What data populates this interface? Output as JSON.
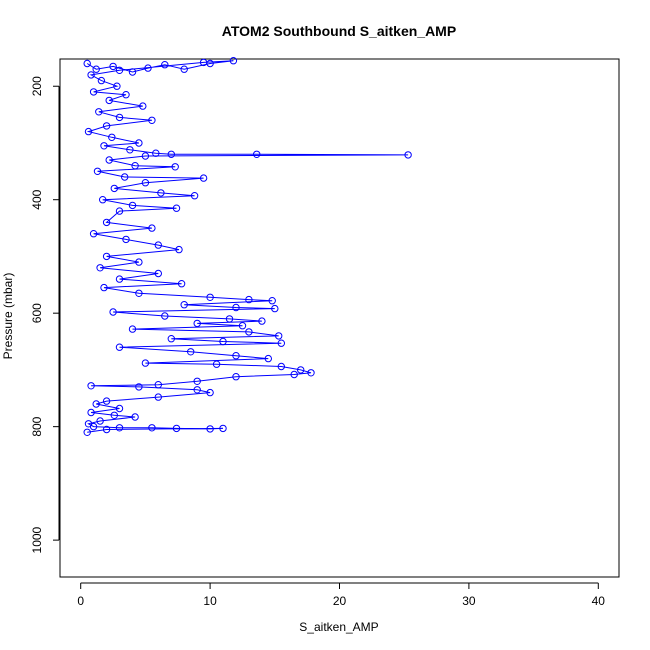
{
  "chart_data": {
    "type": "scatter",
    "title": "ATOM2 Southbound S_aitken_AMP",
    "xlabel": "S_aitken_AMP",
    "ylabel": "Pressure (mbar)",
    "xlim": [
      -1.6,
      41.6
    ],
    "ylim": [
      1065,
      152
    ],
    "y_inverted": true,
    "x_ticks": [
      0,
      10,
      20,
      30,
      40
    ],
    "y_ticks": [
      200,
      400,
      600,
      800,
      1000
    ],
    "grid": false,
    "legend": "none",
    "series": [
      {
        "color": "#0000ff",
        "marker": "open-circle",
        "connected": true,
        "points": [
          [
            0.5,
            160
          ],
          [
            1.2,
            170
          ],
          [
            2.5,
            165
          ],
          [
            4.0,
            175
          ],
          [
            5.2,
            168
          ],
          [
            6.5,
            162
          ],
          [
            8.0,
            170
          ],
          [
            10.0,
            160
          ],
          [
            11.8,
            155
          ],
          [
            9.5,
            158
          ],
          [
            3.0,
            172
          ],
          [
            0.8,
            180
          ],
          [
            1.6,
            190
          ],
          [
            2.8,
            200
          ],
          [
            1.0,
            210
          ],
          [
            3.5,
            215
          ],
          [
            2.2,
            225
          ],
          [
            4.8,
            235
          ],
          [
            1.4,
            245
          ],
          [
            3.0,
            255
          ],
          [
            5.5,
            260
          ],
          [
            2.0,
            270
          ],
          [
            0.6,
            280
          ],
          [
            2.4,
            290
          ],
          [
            4.5,
            300
          ],
          [
            1.8,
            305
          ],
          [
            3.8,
            312
          ],
          [
            5.8,
            318
          ],
          [
            7.0,
            320
          ],
          [
            13.6,
            320
          ],
          [
            25.3,
            321
          ],
          [
            5.0,
            323
          ],
          [
            2.2,
            330
          ],
          [
            4.2,
            340
          ],
          [
            7.3,
            342
          ],
          [
            1.3,
            350
          ],
          [
            3.4,
            360
          ],
          [
            9.5,
            362
          ],
          [
            5.0,
            370
          ],
          [
            2.6,
            380
          ],
          [
            6.2,
            388
          ],
          [
            8.8,
            393
          ],
          [
            1.7,
            400
          ],
          [
            4.0,
            410
          ],
          [
            7.4,
            415
          ],
          [
            3.0,
            420
          ],
          [
            2.0,
            440
          ],
          [
            5.5,
            450
          ],
          [
            1.0,
            460
          ],
          [
            3.5,
            470
          ],
          [
            6.0,
            480
          ],
          [
            7.6,
            488
          ],
          [
            2.0,
            500
          ],
          [
            4.5,
            510
          ],
          [
            1.5,
            520
          ],
          [
            6.0,
            530
          ],
          [
            3.0,
            540
          ],
          [
            7.8,
            548
          ],
          [
            1.8,
            555
          ],
          [
            4.5,
            565
          ],
          [
            10.0,
            572
          ],
          [
            13.0,
            576
          ],
          [
            14.8,
            578
          ],
          [
            8.0,
            585
          ],
          [
            12.0,
            590
          ],
          [
            15.0,
            592
          ],
          [
            2.5,
            598
          ],
          [
            6.5,
            605
          ],
          [
            11.5,
            610
          ],
          [
            14.0,
            614
          ],
          [
            9.0,
            618
          ],
          [
            12.5,
            622
          ],
          [
            4.0,
            628
          ],
          [
            13.0,
            633
          ],
          [
            15.3,
            640
          ],
          [
            7.0,
            645
          ],
          [
            11.0,
            650
          ],
          [
            15.5,
            653
          ],
          [
            3.0,
            660
          ],
          [
            8.5,
            668
          ],
          [
            12.0,
            675
          ],
          [
            14.5,
            680
          ],
          [
            5.0,
            688
          ],
          [
            10.5,
            690
          ],
          [
            15.5,
            694
          ],
          [
            17.0,
            700
          ],
          [
            17.8,
            705
          ],
          [
            16.5,
            708
          ],
          [
            12.0,
            712
          ],
          [
            9.0,
            720
          ],
          [
            6.0,
            726
          ],
          [
            0.8,
            728
          ],
          [
            4.5,
            730
          ],
          [
            9.0,
            735
          ],
          [
            10.0,
            740
          ],
          [
            6.0,
            748
          ],
          [
            2.0,
            755
          ],
          [
            1.2,
            760
          ],
          [
            3.0,
            768
          ],
          [
            0.8,
            775
          ],
          [
            2.6,
            780
          ],
          [
            4.2,
            783
          ],
          [
            1.5,
            790
          ],
          [
            0.6,
            795
          ],
          [
            1.0,
            800
          ],
          [
            3.0,
            802
          ],
          [
            5.5,
            802
          ],
          [
            7.4,
            803
          ],
          [
            10.0,
            804
          ],
          [
            11.0,
            803
          ],
          [
            2.0,
            805
          ],
          [
            0.5,
            810
          ]
        ]
      }
    ]
  }
}
